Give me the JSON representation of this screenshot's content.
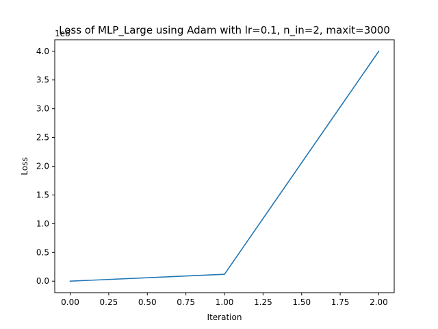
{
  "chart_data": {
    "type": "line",
    "title": "Loss of MLP_Large using Adam with lr=0.1, n_in=2, maxit=3000",
    "xlabel": "Iteration",
    "ylabel": "Loss",
    "y_offset_label": "1e6",
    "x": [
      0,
      1,
      2
    ],
    "series": [
      {
        "values": [
          0,
          120000,
          4000000
        ]
      }
    ],
    "xlim": [
      -0.1,
      2.1
    ],
    "ylim": [
      -200000,
      4200000
    ],
    "x_ticks": [
      0,
      0.25,
      0.5,
      0.75,
      1.0,
      1.25,
      1.5,
      1.75,
      2.0
    ],
    "x_tick_labels": [
      "0.00",
      "0.25",
      "0.50",
      "0.75",
      "1.00",
      "1.25",
      "1.50",
      "1.75",
      "2.00"
    ],
    "y_ticks": [
      0,
      500000,
      1000000,
      1500000,
      2000000,
      2500000,
      3000000,
      3500000,
      4000000
    ],
    "y_tick_labels": [
      "0.0",
      "0.5",
      "1.0",
      "1.5",
      "2.0",
      "2.5",
      "3.0",
      "3.5",
      "4.0"
    ],
    "grid": false,
    "line_color": "#1f77b4"
  }
}
